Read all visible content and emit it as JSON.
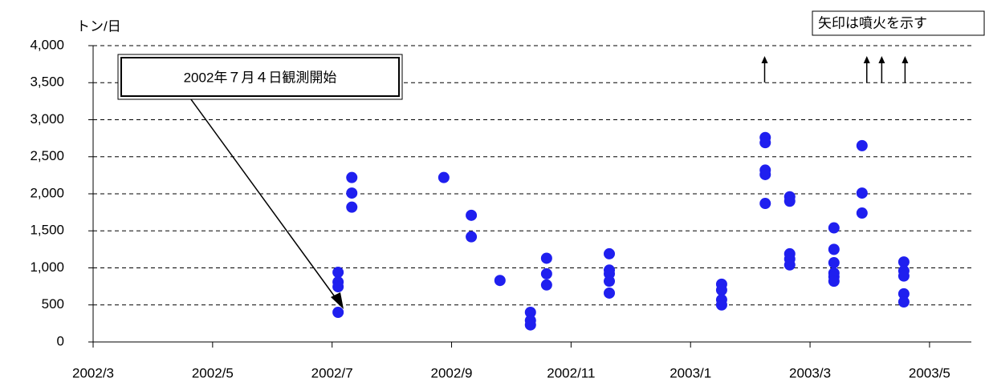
{
  "chart_data": {
    "type": "scatter",
    "y_axis_label": "トン/日",
    "annotation": "2002年７月４日観測開始",
    "note": "矢印は噴火を示す",
    "color": "#1f1fef",
    "xlim": [
      0,
      14.7
    ],
    "xticks": [
      {
        "value": 0,
        "label": "2002/3"
      },
      {
        "value": 2,
        "label": "2002/5"
      },
      {
        "value": 4,
        "label": "2002/7"
      },
      {
        "value": 6,
        "label": "2002/9"
      },
      {
        "value": 8,
        "label": "2002/11"
      },
      {
        "value": 10,
        "label": "2003/1"
      },
      {
        "value": 12,
        "label": "2003/3"
      },
      {
        "value": 14,
        "label": "2003/5"
      }
    ],
    "ylim": [
      0,
      4000
    ],
    "yticks": [
      0,
      500,
      {
        "value": 1000,
        "label": "1,000"
      },
      {
        "value": 1500,
        "label": "1,500"
      },
      {
        "value": 2000,
        "label": "2,000"
      },
      {
        "value": 2500,
        "label": "2,500"
      },
      {
        "value": 3000,
        "label": "3,000"
      },
      {
        "value": 3500,
        "label": "3,500"
      },
      {
        "value": 4000,
        "label": "4,000"
      }
    ],
    "grid": true,
    "eruptions": [
      11.24,
      12.95,
      13.2,
      13.59
    ],
    "x": [
      4.1,
      4.1,
      4.1,
      4.1,
      4.33,
      4.33,
      4.33,
      5.87,
      6.33,
      6.33,
      6.81,
      7.32,
      7.32,
      7.32,
      7.59,
      7.59,
      7.59,
      8.64,
      8.64,
      8.64,
      8.64,
      8.64,
      10.52,
      10.52,
      10.52,
      10.52,
      11.25,
      11.25,
      11.25,
      11.25,
      11.25,
      11.66,
      11.66,
      11.66,
      11.66,
      11.66,
      12.4,
      12.4,
      12.4,
      12.4,
      12.4,
      12.4,
      12.87,
      12.87,
      12.87,
      13.57,
      13.57,
      13.57,
      13.57,
      13.57
    ],
    "values": [
      940,
      810,
      745,
      400,
      2220,
      2010,
      1820,
      2220,
      1710,
      1420,
      830,
      400,
      290,
      230,
      1130,
      920,
      770,
      1190,
      970,
      920,
      820,
      660,
      780,
      700,
      570,
      500,
      2760,
      2690,
      2320,
      2260,
      1870,
      1960,
      1900,
      1190,
      1120,
      1040,
      1540,
      1250,
      1070,
      930,
      880,
      820,
      2650,
      2010,
      1740,
      1080,
      960,
      890,
      650,
      540
    ]
  }
}
